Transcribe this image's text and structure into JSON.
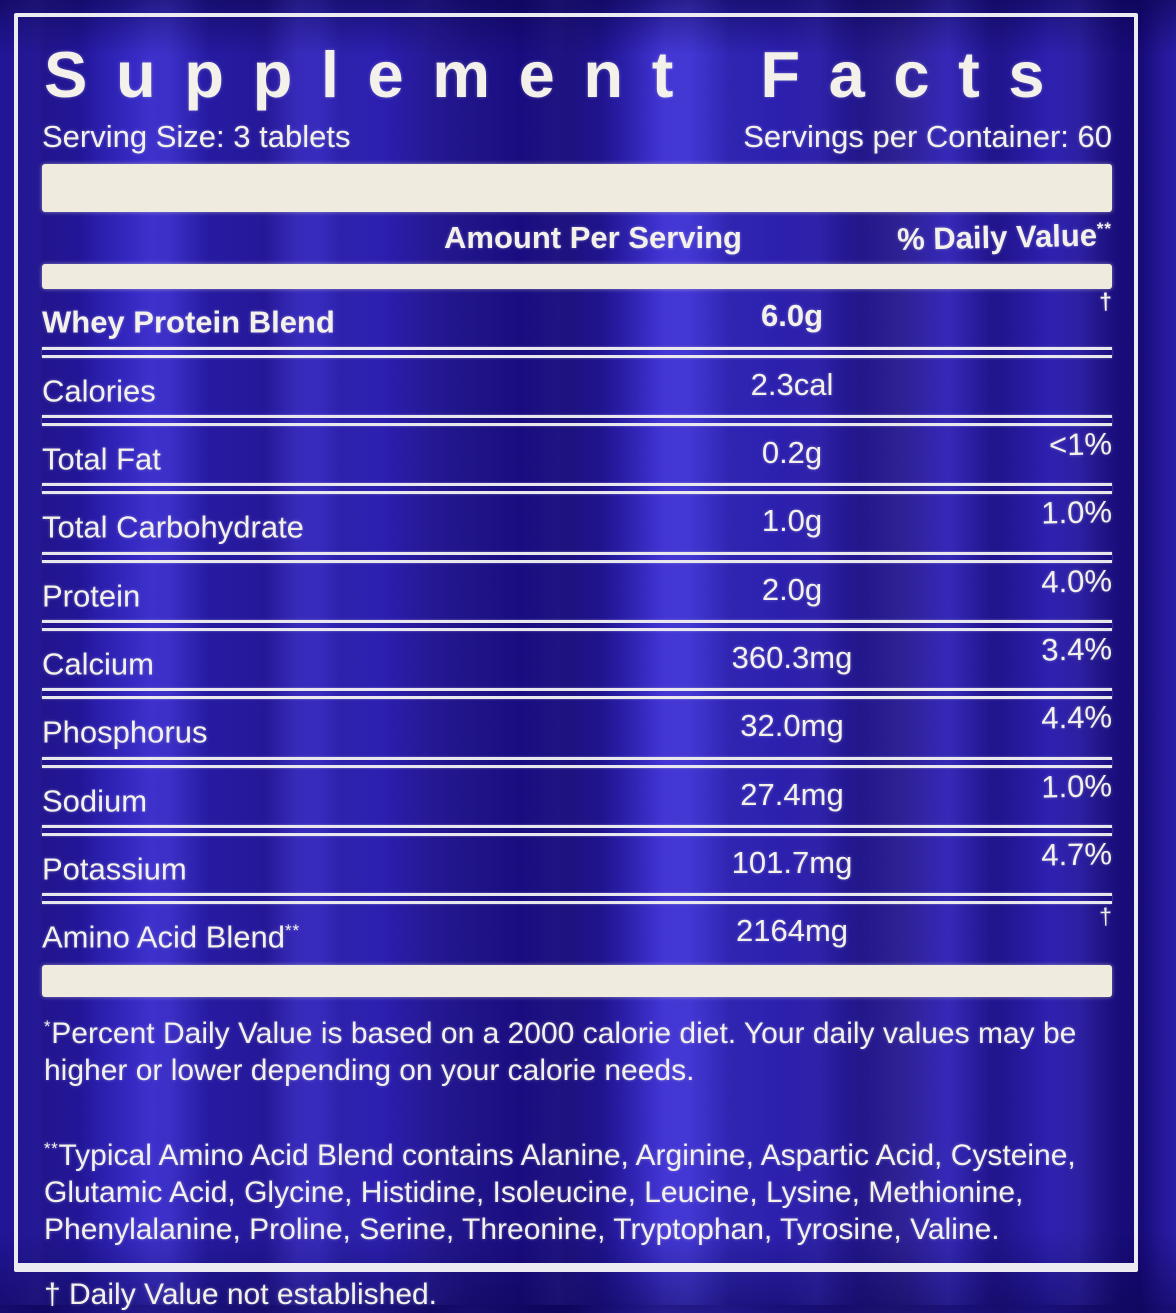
{
  "colors": {
    "background_blue": "#2a1db0",
    "deep_blue_streak": "#170b7c",
    "light_blue_streak": "#4134d3",
    "text_white": "#f3f1ea",
    "bar_cream": "#efecdf"
  },
  "label": {
    "title": "Supplement Facts",
    "serving_size": "Serving Size: 3 tablets",
    "servings_per_container": "Servings per Container: 60",
    "columns": {
      "amount": "Amount Per Serving",
      "daily_value": "% Daily Value",
      "daily_value_sup": "**"
    },
    "rows": [
      {
        "name": "Whey Protein Blend",
        "name_sup": "",
        "amount": "6.0g",
        "dv": "†",
        "bold": true
      },
      {
        "name": "Calories",
        "name_sup": "",
        "amount": "2.3cal",
        "dv": "",
        "bold": false
      },
      {
        "name": "Total Fat",
        "name_sup": "",
        "amount": "0.2g",
        "dv": "<1%",
        "bold": false
      },
      {
        "name": "Total Carbohydrate",
        "name_sup": "",
        "amount": "1.0g",
        "dv": "1.0%",
        "bold": false
      },
      {
        "name": "Protein",
        "name_sup": "",
        "amount": "2.0g",
        "dv": "4.0%",
        "bold": false
      },
      {
        "name": "Calcium",
        "name_sup": "",
        "amount": "360.3mg",
        "dv": "3.4%",
        "bold": false
      },
      {
        "name": "Phosphorus",
        "name_sup": "",
        "amount": "32.0mg",
        "dv": "4.4%",
        "bold": false
      },
      {
        "name": "Sodium",
        "name_sup": "",
        "amount": "27.4mg",
        "dv": "1.0%",
        "bold": false
      },
      {
        "name": "Potassium",
        "name_sup": "",
        "amount": "101.7mg",
        "dv": "4.7%",
        "bold": false
      },
      {
        "name": "Amino Acid Blend",
        "name_sup": "**",
        "amount": "2164mg",
        "dv": "†",
        "bold": false
      }
    ],
    "footnotes": [
      {
        "sup": "*",
        "text": "Percent Daily Value is based on a 2000 calorie diet. Your daily values may be higher or lower depending on your calorie needs."
      },
      {
        "sup": "**",
        "text": "Typical Amino Acid Blend contains Alanine, Arginine, Aspartic Acid, Cysteine, Glutamic Acid, Glycine, Histidine, Isoleucine, Leucine, Lysine, Methionine, Phenylalanine, Proline, Serine, Threonine, Tryptophan, Tyrosine, Valine."
      },
      {
        "sup": "",
        "text": "† Daily Value not established."
      }
    ]
  }
}
